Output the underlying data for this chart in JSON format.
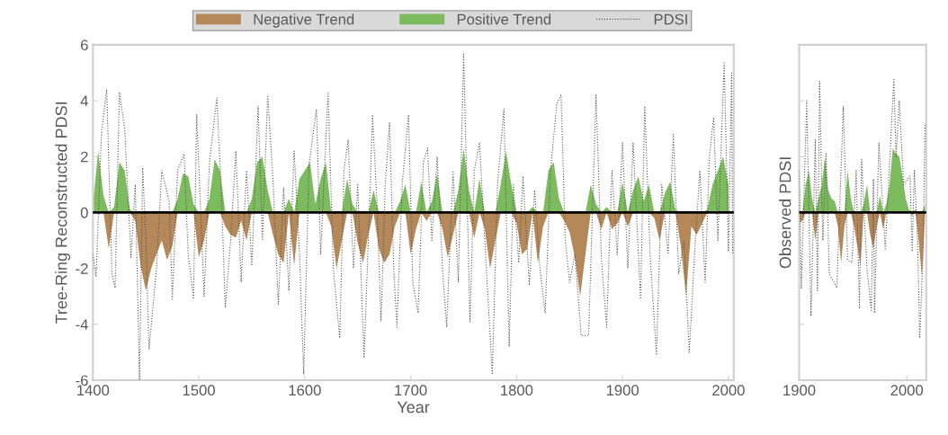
{
  "chart_data": [
    {
      "type": "area",
      "xlabel": "Year",
      "ylabel": "Tree-Ring Reconstructed PDSI",
      "xlim": [
        1400,
        2005
      ],
      "xticks": [
        1400,
        1500,
        1600,
        1700,
        1800,
        1900,
        2000
      ],
      "ylim": [
        -6,
        6
      ],
      "yticks": [
        -6,
        -4,
        -2,
        0,
        2,
        4,
        6
      ],
      "legend": "top",
      "x": [
        1400,
        1405,
        1410,
        1415,
        1420,
        1425,
        1430,
        1435,
        1440,
        1445,
        1450,
        1455,
        1460,
        1465,
        1470,
        1475,
        1480,
        1485,
        1490,
        1495,
        1500,
        1505,
        1510,
        1515,
        1520,
        1525,
        1530,
        1535,
        1540,
        1545,
        1550,
        1555,
        1560,
        1565,
        1570,
        1575,
        1580,
        1585,
        1590,
        1595,
        1600,
        1605,
        1610,
        1615,
        1620,
        1625,
        1630,
        1635,
        1640,
        1645,
        1650,
        1655,
        1660,
        1665,
        1670,
        1675,
        1680,
        1685,
        1690,
        1695,
        1700,
        1705,
        1710,
        1715,
        1720,
        1725,
        1730,
        1735,
        1740,
        1745,
        1750,
        1755,
        1760,
        1765,
        1770,
        1775,
        1780,
        1785,
        1790,
        1795,
        1800,
        1805,
        1810,
        1815,
        1820,
        1825,
        1830,
        1835,
        1840,
        1845,
        1850,
        1855,
        1860,
        1865,
        1870,
        1875,
        1880,
        1885,
        1890,
        1895,
        1900,
        1905,
        1910,
        1915,
        1920,
        1925,
        1930,
        1935,
        1940,
        1945,
        1950,
        1955,
        1960,
        1965,
        1970,
        1975,
        1980,
        1985,
        1990,
        1995,
        2000
      ],
      "series": [
        {
          "name": "Negative Trend",
          "color": "#b5885a",
          "values": [
            0,
            0,
            0,
            -1.3,
            0,
            0,
            0,
            0,
            -0.3,
            -1.9,
            -2.8,
            -2.0,
            -1.5,
            -1.0,
            -1.7,
            -1.2,
            0,
            0,
            0,
            0,
            -1.6,
            -1.0,
            0,
            0,
            0,
            -0.5,
            -0.8,
            -0.9,
            -0.3,
            -1.0,
            0,
            0,
            0,
            0,
            -0.8,
            -1.5,
            -1.8,
            0,
            -1.9,
            0,
            0,
            0,
            0,
            0,
            0,
            -0.5,
            -2.0,
            -1.0,
            0,
            0,
            -1.1,
            -1.8,
            -0.8,
            0,
            -1.3,
            -1.8,
            -1.5,
            -0.5,
            0,
            0,
            -1.5,
            -0.6,
            0,
            -0.3,
            0,
            0,
            -0.6,
            -1.6,
            -0.8,
            0,
            0,
            0,
            -0.9,
            0,
            -0.6,
            -2.0,
            -1.0,
            0,
            0,
            0,
            -0.4,
            -1.5,
            -1.3,
            0,
            -1.8,
            -0.5,
            0,
            0,
            0,
            -0.3,
            -0.7,
            -1.6,
            -3.0,
            -1.5,
            0,
            0,
            -0.6,
            0,
            -0.6,
            -0.4,
            0,
            -0.5,
            0,
            0,
            0,
            0,
            -0.2,
            -1.0,
            0,
            0,
            0,
            -1.2,
            -3.0,
            -0.5,
            -0.8,
            -0.4,
            0,
            0,
            0,
            0,
            0
          ]
        },
        {
          "name": "Positive Trend",
          "color": "#7dbb5f",
          "values": [
            0.3,
            2.2,
            0.6,
            0,
            0.2,
            1.8,
            1.5,
            0.1,
            0,
            0,
            0,
            0,
            0,
            0,
            0,
            0,
            0.5,
            1.4,
            1.3,
            0.3,
            0,
            0,
            0.5,
            1.9,
            1.5,
            0,
            0,
            0,
            0,
            0,
            0.5,
            1.8,
            2.0,
            0.8,
            0,
            0,
            0,
            0.5,
            0,
            1.2,
            1.5,
            1.8,
            0.3,
            1.2,
            1.8,
            0,
            0,
            0,
            1.2,
            0.3,
            0,
            0,
            0,
            0.8,
            0,
            0,
            0,
            0,
            0.4,
            1.0,
            0,
            0,
            1.1,
            0,
            0.4,
            1.4,
            0,
            0,
            0,
            0.8,
            2.3,
            0.8,
            0,
            1.2,
            0,
            0,
            0,
            1.0,
            2.2,
            1.0,
            0,
            0,
            0,
            0.2,
            0,
            0,
            1.5,
            1.8,
            0.5,
            0,
            0,
            0,
            0,
            0,
            1.0,
            0.3,
            0,
            0.2,
            0,
            0,
            1.1,
            0,
            0.8,
            1.3,
            0.4,
            1.0,
            0,
            0,
            0.7,
            1.1,
            0.1,
            0,
            0,
            0,
            0,
            0,
            0.1,
            1.0,
            1.5,
            2.0,
            1.0
          ]
        },
        {
          "name": "PDSI",
          "type": "line",
          "color": "#555555",
          "line_style": "dotted",
          "x": [
            1400,
            1403,
            1408,
            1413,
            1418,
            1421,
            1425,
            1430,
            1436,
            1440,
            1444,
            1447,
            1450,
            1453,
            1460,
            1465,
            1472,
            1475,
            1480,
            1486,
            1490,
            1495,
            1498,
            1505,
            1510,
            1517,
            1521,
            1525,
            1530,
            1535,
            1540,
            1545,
            1550,
            1556,
            1560,
            1565,
            1570,
            1575,
            1580,
            1585,
            1590,
            1595,
            1599,
            1604,
            1611,
            1615,
            1622,
            1627,
            1633,
            1637,
            1641,
            1646,
            1650,
            1656,
            1660,
            1664,
            1668,
            1672,
            1676,
            1680,
            1684,
            1687,
            1692,
            1698,
            1702,
            1707,
            1712,
            1716,
            1720,
            1725,
            1730,
            1734,
            1740,
            1745,
            1750,
            1756,
            1760,
            1765,
            1770,
            1777,
            1782,
            1788,
            1793,
            1797,
            1802,
            1806,
            1812,
            1817,
            1822,
            1827,
            1832,
            1838,
            1842,
            1846,
            1850,
            1855,
            1861,
            1868,
            1875,
            1880,
            1885,
            1890,
            1895,
            1900,
            1905,
            1910,
            1917,
            1921,
            1926,
            1932,
            1937,
            1943,
            1948,
            1953,
            1958,
            1963,
            1968,
            1973,
            1978,
            1982,
            1986,
            1990,
            1996,
            2000,
            2003,
            2004
          ],
          "values": [
            -1.5,
            -2.3,
            2.8,
            4.4,
            -2.2,
            -2.7,
            4.3,
            3.0,
            -1.6,
            1.0,
            -6.0,
            1.6,
            -1.0,
            -4.9,
            -2.0,
            1.5,
            0.4,
            -3.1,
            1.5,
            2.1,
            -1.5,
            -3.1,
            3.5,
            -3.0,
            1.8,
            4.1,
            1.0,
            -3.4,
            -1.0,
            2.2,
            -2.5,
            1.5,
            -1.9,
            3.8,
            -1.0,
            4.2,
            1.2,
            -3.3,
            0.9,
            -2.8,
            2.2,
            -1.4,
            -5.8,
            1.7,
            3.7,
            -1.5,
            4.3,
            -2.0,
            -4.5,
            1.5,
            2.6,
            -2.0,
            1.0,
            -5.2,
            -1.0,
            3.5,
            0.5,
            -3.9,
            1.0,
            3.2,
            -2.0,
            -4.1,
            1.0,
            3.5,
            -2.5,
            -3.6,
            1.8,
            2.3,
            -1.0,
            2.0,
            -2.0,
            -4.1,
            1.5,
            -2.5,
            5.7,
            -3.9,
            1.5,
            2.5,
            -1.0,
            -5.8,
            1.0,
            3.7,
            -4.8,
            1.0,
            -1.8,
            1.3,
            -2.6,
            0.8,
            -2.0,
            -3.6,
            1.5,
            3.9,
            4.2,
            -1.0,
            -2.5,
            -1.5,
            -4.4,
            -4.4,
            4.2,
            -1.6,
            -4.1,
            1.5,
            -1.5,
            2.5,
            -2.0,
            2.5,
            -3.1,
            3.8,
            -1.5,
            -5.1,
            1.0,
            -1.5,
            2.8,
            -2.2,
            -1.0,
            -5.0,
            -1.5,
            1.5,
            -2.5,
            2.0,
            3.4,
            -1.0,
            5.4,
            -1.4,
            5.0,
            -1.5
          ]
        }
      ],
      "ref_lines": [
        {
          "axis": "y",
          "value": 0,
          "color": "#000000"
        }
      ]
    },
    {
      "type": "area",
      "ylabel": "Observed PDSI",
      "xlim": [
        1900,
        2018
      ],
      "xticks": [
        1900,
        2000
      ],
      "ylim": [
        -6,
        6
      ],
      "yticks": [
        -6,
        -4,
        -2,
        0,
        2,
        4,
        6
      ],
      "tick_labels": "x",
      "x": [
        1900,
        1903,
        1906,
        1909,
        1912,
        1915,
        1918,
        1921,
        1924,
        1927,
        1930,
        1933,
        1936,
        1939,
        1942,
        1945,
        1948,
        1951,
        1954,
        1957,
        1960,
        1963,
        1966,
        1969,
        1972,
        1975,
        1978,
        1981,
        1984,
        1987,
        1990,
        1993,
        1996,
        1999,
        2002,
        2005,
        2008,
        2011,
        2014,
        2017
      ],
      "series": [
        {
          "color": "#b5885a",
          "values": [
            -0.4,
            -0.3,
            0,
            0,
            0,
            -1.0,
            0,
            0,
            0,
            0,
            0,
            0,
            -0.5,
            -1.8,
            -0.5,
            0,
            0,
            -0.5,
            -1.2,
            -1.9,
            0,
            0,
            -0.8,
            -1.3,
            -0.5,
            0,
            -0.6,
            0,
            0,
            0,
            0,
            0,
            0,
            0,
            0,
            -0.1,
            0,
            -1.0,
            -2.3,
            0
          ]
        },
        {
          "color": "#7dbb5f",
          "values": [
            0,
            0,
            1.0,
            1.5,
            0.5,
            0,
            0.5,
            1.0,
            2.0,
            0.8,
            0.5,
            0.4,
            0,
            0,
            0,
            1.5,
            0.5,
            0,
            0,
            0,
            0.3,
            1.0,
            0,
            0,
            0,
            0.6,
            0,
            0.3,
            1.0,
            2.3,
            2.1,
            2.0,
            1.3,
            0.5,
            0.1,
            0,
            0.1,
            0,
            0,
            0.3
          ]
        },
        {
          "type": "line",
          "color": "#555555",
          "line_style": "dotted",
          "x": [
            1900,
            1902,
            1907,
            1911,
            1915,
            1917,
            1919,
            1922,
            1925,
            1928,
            1935,
            1941,
            1945,
            1949,
            1953,
            1956,
            1958,
            1963,
            1967,
            1969,
            1970,
            1974,
            1980,
            1983,
            1988,
            1990,
            1993,
            1997,
            2003,
            2005,
            2007,
            2010,
            2012,
            2015,
            2017
          ],
          "values": [
            1.5,
            -2.7,
            4.0,
            -3.7,
            2.6,
            -2.8,
            4.7,
            -1.0,
            2.1,
            -2.2,
            -2.7,
            3.8,
            -1.7,
            -1.8,
            1.5,
            -3.4,
            1.9,
            -2.0,
            -3.5,
            1.2,
            -3.6,
            2.5,
            -1.3,
            1.0,
            4.8,
            2.0,
            4.0,
            1.0,
            1.3,
            -1.4,
            1.5,
            -1.0,
            -4.5,
            -1.5,
            3.2
          ]
        }
      ],
      "ref_lines": [
        {
          "axis": "y",
          "value": 0,
          "color": "#000000"
        }
      ]
    }
  ]
}
